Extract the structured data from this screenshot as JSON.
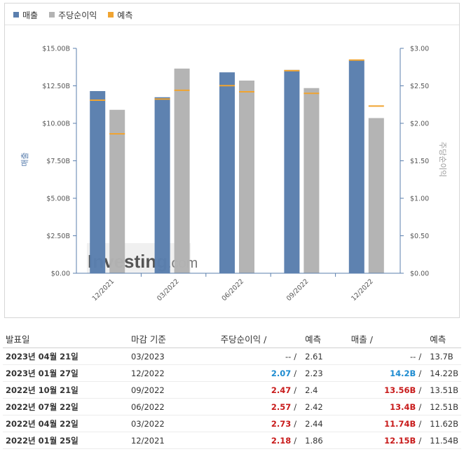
{
  "legend": {
    "revenue": "매출",
    "eps": "주당순이익",
    "forecast": "예측"
  },
  "colors": {
    "revenue": "#5b7fae",
    "eps": "#b3b3b3",
    "forecast": "#f0a431"
  },
  "watermark": {
    "brand": "Investing",
    "suffix": ".com"
  },
  "chart_data": {
    "type": "bar",
    "categories": [
      "12/2021",
      "03/2022",
      "06/2022",
      "09/2022",
      "12/2022"
    ],
    "series": [
      {
        "name": "매출",
        "axis": "left",
        "values": [
          12.15,
          11.74,
          13.4,
          13.56,
          14.2
        ],
        "forecast": [
          11.54,
          11.62,
          12.51,
          13.51,
          14.22
        ]
      },
      {
        "name": "주당순이익",
        "axis": "right",
        "values": [
          2.18,
          2.73,
          2.57,
          2.47,
          2.07
        ],
        "forecast": [
          1.86,
          2.44,
          2.42,
          2.4,
          2.23
        ]
      }
    ],
    "ylabel": "매출",
    "ylabel_right": "주당순이익",
    "ylim": [
      0,
      15
    ],
    "ylim_right": [
      0,
      3
    ],
    "yticks": [
      "$0.00",
      "$2.50B",
      "$5.00B",
      "$7.50B",
      "$10.00B",
      "$12.50B",
      "$15.00B"
    ],
    "yticks_right": [
      "$0.00",
      "$0.50",
      "$1.00",
      "$1.50",
      "$2.00",
      "$2.50",
      "$3.00"
    ],
    "grid": false,
    "legend_position": "top-left"
  },
  "table": {
    "headers": {
      "date": "발표일",
      "period": "마감 기준",
      "eps": "주당순이익",
      "eps_forecast": "예측",
      "revenue": "매출",
      "revenue_forecast": "예측",
      "slash": "/"
    },
    "rows": [
      {
        "date": "2023년 04월 21일",
        "period": "03/2023",
        "eps": "--",
        "eps_tone": "neutral",
        "eps_forecast": "2.61",
        "revenue": "--",
        "revenue_tone": "neutral",
        "revenue_forecast": "13.7B"
      },
      {
        "date": "2023년 01월 27일",
        "period": "12/2022",
        "eps": "2.07",
        "eps_tone": "pos",
        "eps_forecast": "2.23",
        "revenue": "14.2B",
        "revenue_tone": "pos",
        "revenue_forecast": "14.22B"
      },
      {
        "date": "2022년 10월 21일",
        "period": "09/2022",
        "eps": "2.47",
        "eps_tone": "neg",
        "eps_forecast": "2.4",
        "revenue": "13.56B",
        "revenue_tone": "neg",
        "revenue_forecast": "13.51B"
      },
      {
        "date": "2022년 07월 22일",
        "period": "06/2022",
        "eps": "2.57",
        "eps_tone": "neg",
        "eps_forecast": "2.42",
        "revenue": "13.4B",
        "revenue_tone": "neg",
        "revenue_forecast": "12.51B"
      },
      {
        "date": "2022년 04월 22일",
        "period": "03/2022",
        "eps": "2.73",
        "eps_tone": "neg",
        "eps_forecast": "2.44",
        "revenue": "11.74B",
        "revenue_tone": "neg",
        "revenue_forecast": "11.62B"
      },
      {
        "date": "2022년 01월 25일",
        "period": "12/2021",
        "eps": "2.18",
        "eps_tone": "neg",
        "eps_forecast": "1.86",
        "revenue": "12.15B",
        "revenue_tone": "neg",
        "revenue_forecast": "11.54B"
      }
    ]
  }
}
